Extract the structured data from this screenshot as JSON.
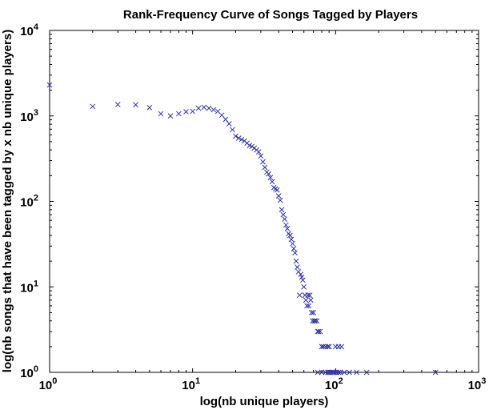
{
  "chart_data": {
    "type": "scatter",
    "title": "Rank-Frequency Curve of Songs Tagged by Players",
    "xlabel": "log(nb unique players)",
    "ylabel": "log(nb songs that have been tagged by x nb unique players)",
    "x_scale": "log",
    "y_scale": "log",
    "xlim": [
      1,
      1000
    ],
    "ylim": [
      1,
      10000
    ],
    "grid": false,
    "marker": "x",
    "marker_color": "#3333aa",
    "x_ticks": [
      {
        "base": "10",
        "exp": "0",
        "value": 1
      },
      {
        "base": "10",
        "exp": "1",
        "value": 10
      },
      {
        "base": "10",
        "exp": "2",
        "value": 100
      },
      {
        "base": "10",
        "exp": "3",
        "value": 1000
      }
    ],
    "y_ticks": [
      {
        "base": "10",
        "exp": "0",
        "value": 1
      },
      {
        "base": "10",
        "exp": "1",
        "value": 10
      },
      {
        "base": "10",
        "exp": "2",
        "value": 100
      },
      {
        "base": "10",
        "exp": "3",
        "value": 1000
      },
      {
        "base": "10",
        "exp": "4",
        "value": 10000
      }
    ],
    "series": [
      {
        "points": [
          [
            1,
            2300
          ],
          [
            2,
            1290
          ],
          [
            3,
            1360
          ],
          [
            4,
            1350
          ],
          [
            5,
            1250
          ],
          [
            6,
            1060
          ],
          [
            7,
            1000
          ],
          [
            8,
            1060
          ],
          [
            9,
            1120
          ],
          [
            10,
            1130
          ],
          [
            11,
            1230
          ],
          [
            12,
            1260
          ],
          [
            13,
            1230
          ],
          [
            14,
            1180
          ],
          [
            15,
            1130
          ],
          [
            16,
            1020
          ],
          [
            17,
            910
          ],
          [
            18,
            810
          ],
          [
            19,
            690
          ],
          [
            20,
            580
          ],
          [
            21,
            550
          ],
          [
            22,
            530
          ],
          [
            23,
            510
          ],
          [
            24,
            480
          ],
          [
            25,
            450
          ],
          [
            26,
            440
          ],
          [
            27,
            420
          ],
          [
            28,
            400
          ],
          [
            29,
            380
          ],
          [
            30,
            340
          ],
          [
            31,
            290
          ],
          [
            32,
            250
          ],
          [
            33,
            220
          ],
          [
            34,
            210
          ],
          [
            35,
            190
          ],
          [
            36,
            170
          ],
          [
            37,
            145
          ],
          [
            38,
            140
          ],
          [
            39,
            136
          ],
          [
            40,
            116
          ],
          [
            41,
            103
          ],
          [
            42,
            80
          ],
          [
            43,
            70
          ],
          [
            44,
            62
          ],
          [
            45,
            53
          ],
          [
            46,
            48
          ],
          [
            47,
            42
          ],
          [
            48,
            40
          ],
          [
            49,
            36
          ],
          [
            50,
            32
          ],
          [
            51,
            28
          ],
          [
            52,
            25
          ],
          [
            53,
            20
          ],
          [
            54,
            17
          ],
          [
            55,
            15
          ],
          [
            56,
            8
          ],
          [
            57,
            14
          ],
          [
            58,
            13
          ],
          [
            59,
            12
          ],
          [
            60,
            10
          ],
          [
            61,
            8
          ],
          [
            62,
            7
          ],
          [
            63,
            6
          ],
          [
            64,
            8
          ],
          [
            65,
            6
          ],
          [
            66,
            8
          ],
          [
            67,
            7
          ],
          [
            68,
            5
          ],
          [
            69,
            4
          ],
          [
            70,
            5
          ],
          [
            71,
            4
          ],
          [
            72,
            4
          ],
          [
            74,
            4
          ],
          [
            75,
            3
          ],
          [
            76,
            3
          ],
          [
            78,
            3
          ],
          [
            80,
            2
          ],
          [
            82,
            2
          ],
          [
            85,
            2
          ],
          [
            88,
            2
          ],
          [
            90,
            2
          ],
          [
            100,
            2
          ],
          [
            105,
            2
          ],
          [
            110,
            2
          ],
          [
            75,
            1
          ],
          [
            80,
            1
          ],
          [
            85,
            1
          ],
          [
            88,
            1
          ],
          [
            90,
            1
          ],
          [
            92,
            1
          ],
          [
            95,
            1
          ],
          [
            97,
            1
          ],
          [
            100,
            1
          ],
          [
            102,
            1
          ],
          [
            105,
            1
          ],
          [
            108,
            1
          ],
          [
            115,
            1
          ],
          [
            125,
            1
          ],
          [
            140,
            1
          ],
          [
            165,
            1
          ],
          [
            500,
            1
          ]
        ]
      }
    ]
  }
}
